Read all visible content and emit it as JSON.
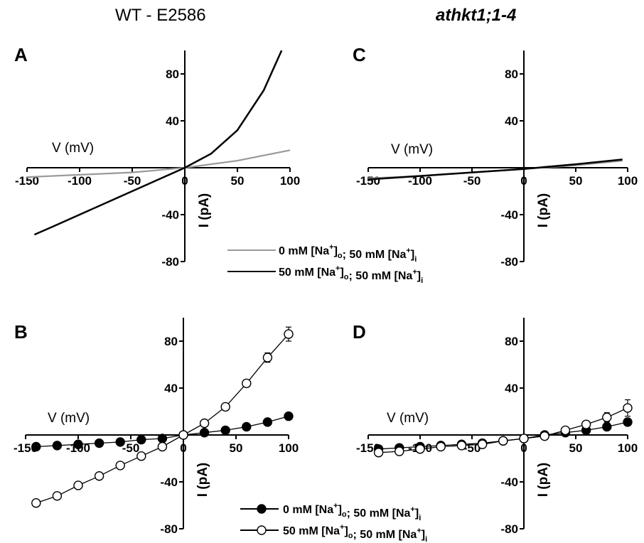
{
  "titles": {
    "left": "WT - E2586",
    "right": "athkt1;1-4"
  },
  "common": {
    "x_ticks": [
      -150,
      -100,
      -50,
      0,
      50,
      100
    ],
    "y_ticks": [
      -80,
      -40,
      40,
      80
    ],
    "xlim": [
      -150,
      100
    ],
    "ylim": [
      -80,
      100
    ],
    "x_unit_label": "V (mV)",
    "y_unit_label": "I (pA)"
  },
  "legend_top": [
    {
      "text": "0 mM [Na+]o; 50 mM [Na+]i",
      "color": "#999999"
    },
    {
      "text": "50 mM [Na+]o; 50 mM [Na+]i",
      "color": "#000000"
    }
  ],
  "legend_bottom": [
    {
      "text": "0 mM [Na+]o; 50 mM [Na+]i",
      "marker": "filled"
    },
    {
      "text": "50 mM [Na+]o; 50 mM [Na+]i",
      "marker": "open"
    }
  ],
  "chart_data": [
    {
      "panel": "A",
      "type": "line",
      "xlim": [
        -150,
        100
      ],
      "ylim": [
        -80,
        100
      ],
      "series": [
        {
          "name": "0 mM [Na+]o; 50 mM [Na+]i",
          "color": "#999999",
          "x": [
            -150,
            -100,
            -50,
            0,
            50,
            100
          ],
          "y": [
            -8,
            -6,
            -4,
            0,
            6,
            15
          ]
        },
        {
          "name": "50 mM [Na+]o; 50 mM [Na+]i",
          "color": "#000000",
          "x": [
            -143,
            -125,
            -100,
            -75,
            -50,
            -25,
            0,
            25,
            50,
            75,
            92
          ],
          "y": [
            -57,
            -50,
            -40,
            -30,
            -20,
            -10,
            0,
            12,
            32,
            66,
            100
          ]
        }
      ]
    },
    {
      "panel": "B",
      "type": "scatter",
      "xlim": [
        -150,
        100
      ],
      "ylim": [
        -80,
        100
      ],
      "series": [
        {
          "name": "0 mM [Na+]o; 50 mM [Na+]i",
          "marker": "filled",
          "x": [
            -140,
            -120,
            -100,
            -80,
            -60,
            -40,
            -20,
            0,
            20,
            40,
            60,
            80,
            100
          ],
          "y": [
            -10,
            -9,
            -8,
            -7,
            -6,
            -4,
            -3,
            0,
            2,
            4,
            7,
            11,
            16
          ],
          "err": [
            1,
            1,
            1,
            1,
            1,
            1,
            1,
            1,
            1,
            1,
            1,
            1,
            2
          ]
        },
        {
          "name": "50 mM [Na+]o; 50 mM [Na+]i",
          "marker": "open",
          "x": [
            -140,
            -120,
            -100,
            -80,
            -60,
            -40,
            -20,
            0,
            20,
            40,
            60,
            80,
            100
          ],
          "y": [
            -58,
            -52,
            -43,
            -35,
            -26,
            -18,
            -10,
            0,
            10,
            24,
            44,
            66,
            86
          ],
          "err": [
            2,
            2,
            2,
            2,
            2,
            2,
            2,
            1,
            2,
            3,
            3,
            4,
            6
          ]
        }
      ]
    },
    {
      "panel": "C",
      "type": "line",
      "xlim": [
        -150,
        100
      ],
      "ylim": [
        -80,
        100
      ],
      "series": [
        {
          "name": "0 mM [Na+]o; 50 mM [Na+]i",
          "color": "#999999",
          "x": [
            -150,
            -100,
            -50,
            0,
            50,
            95
          ],
          "y": [
            -9,
            -7,
            -4,
            -1,
            2,
            6
          ]
        },
        {
          "name": "50 mM [Na+]o; 50 mM [Na+]i",
          "color": "#000000",
          "x": [
            -150,
            -100,
            -50,
            0,
            50,
            95
          ],
          "y": [
            -10,
            -7,
            -4,
            -1,
            3,
            7
          ]
        }
      ]
    },
    {
      "panel": "D",
      "type": "scatter",
      "xlim": [
        -150,
        100
      ],
      "ylim": [
        -80,
        100
      ],
      "series": [
        {
          "name": "0 mM [Na+]o; 50 mM [Na+]i",
          "marker": "filled",
          "x": [
            -140,
            -120,
            -100,
            -80,
            -60,
            -40,
            -20,
            0,
            20,
            40,
            60,
            80,
            100
          ],
          "y": [
            -12,
            -11,
            -10,
            -9,
            -8,
            -7,
            -5,
            -3,
            0,
            2,
            4,
            7,
            11
          ],
          "err": [
            2,
            2,
            2,
            2,
            2,
            2,
            2,
            1,
            1,
            1,
            2,
            2,
            3
          ]
        },
        {
          "name": "50 mM [Na+]o; 50 mM [Na+]i",
          "marker": "open",
          "x": [
            -140,
            -120,
            -100,
            -80,
            -60,
            -40,
            -20,
            0,
            20,
            40,
            60,
            80,
            100
          ],
          "y": [
            -15,
            -14,
            -12,
            -10,
            -9,
            -8,
            -5,
            -3,
            -1,
            4,
            9,
            15,
            23
          ],
          "err": [
            2,
            2,
            2,
            2,
            2,
            2,
            2,
            1,
            1,
            2,
            3,
            4,
            7
          ]
        }
      ]
    }
  ]
}
